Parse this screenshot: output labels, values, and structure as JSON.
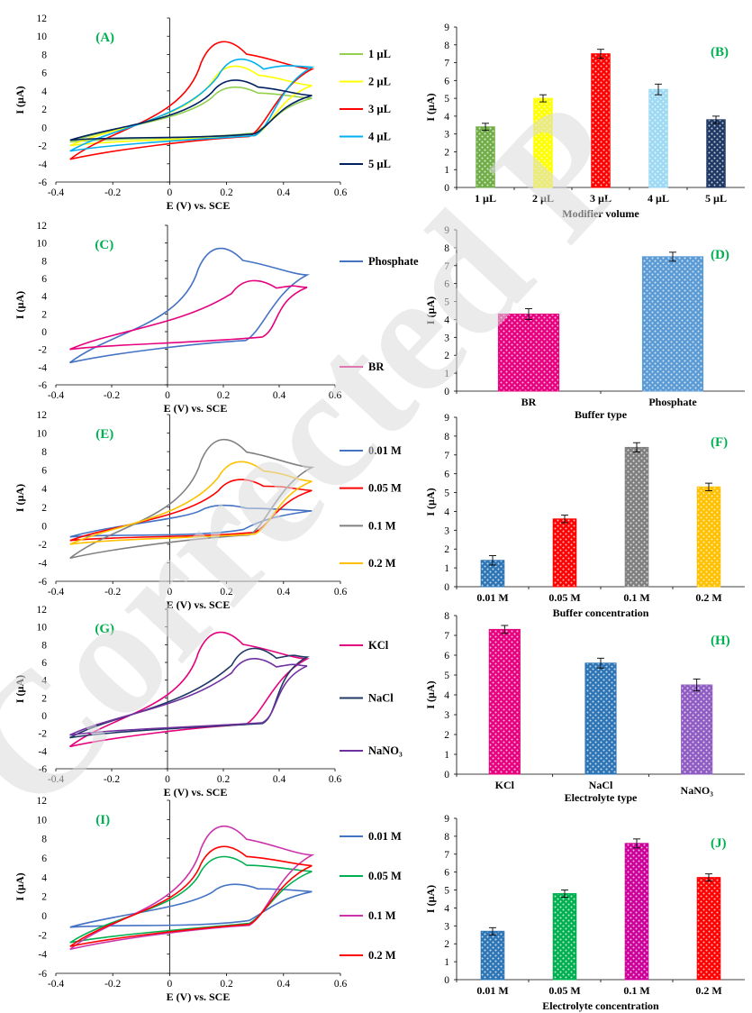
{
  "watermark": {
    "text": "Corrected P",
    "color": "#dcdcdc"
  },
  "cv_style": {
    "x_ticks": [
      "-0.4",
      "-0.2",
      "0",
      "0.2",
      "0.4",
      "0.6"
    ],
    "xlabel": "E (V) vs. SCE",
    "ylabel": "I (µA)"
  },
  "chart_data": [
    {
      "panel": "A",
      "type": "line",
      "title": "(A)",
      "xlabel": "E (V) vs. SCE",
      "ylabel": "I (µA)",
      "xlim": [
        -0.4,
        0.6
      ],
      "ylim": [
        -6,
        12
      ],
      "y_ticks": [
        -6,
        -4,
        -2,
        0,
        2,
        4,
        6,
        8,
        10,
        12
      ],
      "legend_position": "right",
      "series": [
        {
          "name": "1 µL",
          "color": "#92d050",
          "peak": [
            0.22,
            4.6
          ],
          "ret": [
            0.3,
            -0.6
          ],
          "start": [
            -0.35,
            -1.6
          ],
          "end": [
            0.5,
            3.2
          ]
        },
        {
          "name": "2 µL",
          "color": "#ffff00",
          "peak": [
            0.22,
            7.0
          ],
          "ret": [
            0.3,
            -0.9
          ],
          "start": [
            -0.35,
            -2.0
          ],
          "end": [
            0.5,
            4.6
          ]
        },
        {
          "name": "3 µL",
          "color": "#ff0000",
          "peak": [
            0.18,
            9.8
          ],
          "ret": [
            0.28,
            -1.0
          ],
          "start": [
            -0.35,
            -3.5
          ],
          "end": [
            0.5,
            6.4
          ]
        },
        {
          "name": "4 µL",
          "color": "#00b0f0",
          "peak": [
            0.24,
            7.8
          ],
          "ret": [
            0.3,
            -0.9
          ],
          "start": [
            -0.35,
            -2.6
          ],
          "end": [
            0.5,
            6.6
          ]
        },
        {
          "name": "5 µL",
          "color": "#002060",
          "peak": [
            0.22,
            5.4
          ],
          "ret": [
            0.3,
            -0.7
          ],
          "start": [
            -0.35,
            -1.4
          ],
          "end": [
            0.5,
            3.5
          ]
        }
      ]
    },
    {
      "panel": "B",
      "type": "bar",
      "title": "(B)",
      "xlabel": "Modifier volume",
      "ylabel": "I (µA)",
      "ylim": [
        0,
        9
      ],
      "y_ticks": [
        0,
        1,
        2,
        3,
        4,
        5,
        6,
        7,
        8,
        9
      ],
      "categories": [
        "1 µL",
        "2 µL",
        "3 µL",
        "4 µL",
        "5 µL"
      ],
      "values": [
        3.4,
        5.0,
        7.5,
        5.5,
        3.8
      ],
      "errors": [
        0.2,
        0.2,
        0.25,
        0.3,
        0.2
      ],
      "colors": [
        "#70ad47",
        "#ffff00",
        "#ff0000",
        "#9dd9f3",
        "#1f3864"
      ]
    },
    {
      "panel": "C",
      "type": "line",
      "title": "(C)",
      "xlabel": "E (V) vs. SCE",
      "ylabel": "I (µA)",
      "xlim": [
        -0.4,
        0.6
      ],
      "ylim": [
        -6,
        12
      ],
      "y_ticks": [
        -6,
        -4,
        -2,
        0,
        2,
        4,
        6,
        8,
        10,
        12
      ],
      "legend_position": "right",
      "series": [
        {
          "name": "Phosphate",
          "color": "#4472c4",
          "peak": [
            0.18,
            9.8
          ],
          "ret": [
            0.28,
            -1.0
          ],
          "start": [
            -0.35,
            -3.5
          ],
          "end": [
            0.5,
            6.4
          ]
        },
        {
          "name": "BR",
          "color": "#e6007e",
          "peak": [
            0.3,
            6.0
          ],
          "ret": [
            0.34,
            -0.6
          ],
          "start": [
            -0.35,
            -2.0
          ],
          "end": [
            0.5,
            5.0
          ]
        }
      ]
    },
    {
      "panel": "D",
      "type": "bar",
      "title": "(D)",
      "xlabel": "Buffer type",
      "ylabel": "I (µA)",
      "ylim": [
        0,
        9
      ],
      "y_ticks": [
        0,
        1,
        2,
        3,
        4,
        5,
        6,
        7,
        8,
        9
      ],
      "categories": [
        "BR",
        "Phosphate"
      ],
      "values": [
        4.3,
        7.5
      ],
      "errors": [
        0.3,
        0.25
      ],
      "colors": [
        "#e6007e",
        "#5b9bd5"
      ]
    },
    {
      "panel": "E",
      "type": "line",
      "title": "(E)",
      "xlabel": "E (V) vs. SCE",
      "ylabel": "I (µA)",
      "xlim": [
        -0.4,
        0.6
      ],
      "ylim": [
        -6,
        12
      ],
      "y_ticks": [
        -6,
        -4,
        -2,
        0,
        2,
        4,
        6,
        8,
        10,
        12
      ],
      "legend_position": "right",
      "series": [
        {
          "name": "0.01 M",
          "color": "#4472c4",
          "peak": [
            0.18,
            2.3
          ],
          "ret": [
            0.26,
            -0.4
          ],
          "start": [
            -0.35,
            -1.2
          ],
          "end": [
            0.5,
            1.6
          ]
        },
        {
          "name": "0.05 M",
          "color": "#ff0000",
          "peak": [
            0.24,
            5.2
          ],
          "ret": [
            0.3,
            -0.7
          ],
          "start": [
            -0.35,
            -1.6
          ],
          "end": [
            0.5,
            3.8
          ]
        },
        {
          "name": "0.1 M",
          "color": "#808080",
          "peak": [
            0.18,
            9.7
          ],
          "ret": [
            0.28,
            -1.0
          ],
          "start": [
            -0.35,
            -3.5
          ],
          "end": [
            0.5,
            6.3
          ]
        },
        {
          "name": "0.2 M",
          "color": "#ffc000",
          "peak": [
            0.24,
            7.2
          ],
          "ret": [
            0.3,
            -0.9
          ],
          "start": [
            -0.35,
            -2.0
          ],
          "end": [
            0.5,
            4.8
          ]
        }
      ]
    },
    {
      "panel": "F",
      "type": "bar",
      "title": "(F)",
      "xlabel": "Buffer concentration",
      "ylabel": "I (µA)",
      "ylim": [
        0,
        9
      ],
      "y_ticks": [
        0,
        1,
        2,
        3,
        4,
        5,
        6,
        7,
        8,
        9
      ],
      "categories": [
        "0.01 M",
        "0.05 M",
        "0.1 M",
        "0.2 M"
      ],
      "values": [
        1.4,
        3.6,
        7.4,
        5.3
      ],
      "errors": [
        0.25,
        0.2,
        0.25,
        0.2
      ],
      "colors": [
        "#2e75b6",
        "#ff0000",
        "#7f7f7f",
        "#ffc000"
      ]
    },
    {
      "panel": "G",
      "type": "line",
      "title": "(G)",
      "xlabel": "E (V) vs. SCE",
      "ylabel": "I (µA)",
      "xlim": [
        -0.4,
        0.6
      ],
      "ylim": [
        -6,
        12
      ],
      "y_ticks": [
        -6,
        -4,
        -2,
        0,
        2,
        4,
        6,
        8,
        10,
        12
      ],
      "legend_position": "right",
      "series": [
        {
          "name": "KCl",
          "color": "#e6007e",
          "peak": [
            0.18,
            9.8
          ],
          "ret": [
            0.28,
            -1.0
          ],
          "start": [
            -0.35,
            -3.5
          ],
          "end": [
            0.5,
            6.4
          ]
        },
        {
          "name": "NaCl",
          "color": "#1f3864",
          "peak": [
            0.3,
            7.9
          ],
          "ret": [
            0.34,
            -0.9
          ],
          "start": [
            -0.35,
            -2.5
          ],
          "end": [
            0.5,
            6.6
          ]
        },
        {
          "name": "NaNO₃",
          "color": "#7030a0",
          "peak": [
            0.3,
            6.7
          ],
          "ret": [
            0.34,
            -0.8
          ],
          "start": [
            -0.35,
            -2.2
          ],
          "end": [
            0.5,
            5.6
          ]
        }
      ]
    },
    {
      "panel": "H",
      "type": "bar",
      "title": "(H)",
      "xlabel": "Electrolyte type",
      "ylabel": "I (µA)",
      "ylim": [
        0,
        8
      ],
      "y_ticks": [
        0,
        1,
        2,
        3,
        4,
        5,
        6,
        7,
        8
      ],
      "categories": [
        "KCl",
        "NaCl",
        "NaNO₃"
      ],
      "values": [
        7.3,
        5.6,
        4.5
      ],
      "errors": [
        0.2,
        0.25,
        0.3
      ],
      "colors": [
        "#e6007e",
        "#2e75b6",
        "#8e5cc2"
      ]
    },
    {
      "panel": "I",
      "type": "line",
      "title": "(I)",
      "xlabel": "E (V) vs. SCE",
      "ylabel": "I (µA)",
      "xlim": [
        -0.4,
        0.6
      ],
      "ylim": [
        -6,
        12
      ],
      "y_ticks": [
        -6,
        -4,
        -2,
        0,
        2,
        4,
        6,
        8,
        10,
        12
      ],
      "legend_position": "right",
      "series": [
        {
          "name": "0.01 M",
          "color": "#4472c4",
          "peak": [
            0.22,
            3.4
          ],
          "ret": [
            0.28,
            -0.5
          ],
          "start": [
            -0.35,
            -1.2
          ],
          "end": [
            0.5,
            2.5
          ]
        },
        {
          "name": "0.05 M",
          "color": "#00b050",
          "peak": [
            0.18,
            6.4
          ],
          "ret": [
            0.28,
            -0.8
          ],
          "start": [
            -0.35,
            -2.8
          ],
          "end": [
            0.5,
            4.6
          ]
        },
        {
          "name": "0.1 M",
          "color": "#cc33aa",
          "peak": [
            0.18,
            9.7
          ],
          "ret": [
            0.28,
            -1.0
          ],
          "start": [
            -0.35,
            -3.5
          ],
          "end": [
            0.5,
            6.3
          ]
        },
        {
          "name": "0.2 M",
          "color": "#ff0000",
          "peak": [
            0.18,
            7.5
          ],
          "ret": [
            0.28,
            -0.9
          ],
          "start": [
            -0.35,
            -3.2
          ],
          "end": [
            0.5,
            5.2
          ]
        }
      ]
    },
    {
      "panel": "J",
      "type": "bar",
      "title": "(J)",
      "xlabel": "Electrolyte concentration",
      "ylabel": "I (µA)",
      "ylim": [
        0,
        9
      ],
      "y_ticks": [
        0,
        1,
        2,
        3,
        4,
        5,
        6,
        7,
        8,
        9
      ],
      "categories": [
        "0.01 M",
        "0.05 M",
        "0.1 M",
        "0.2 M"
      ],
      "values": [
        2.7,
        4.8,
        7.6,
        5.7
      ],
      "errors": [
        0.2,
        0.2,
        0.25,
        0.2
      ],
      "colors": [
        "#2e75b6",
        "#00b050",
        "#cc0099",
        "#ff0000"
      ]
    }
  ]
}
